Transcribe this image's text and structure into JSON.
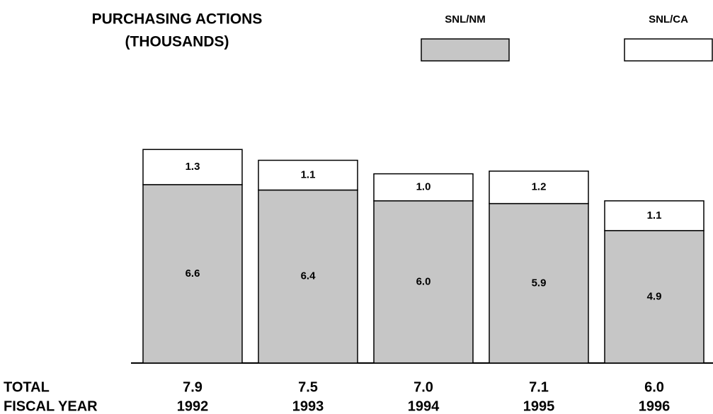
{
  "chart_data": {
    "type": "stacked_bar",
    "title": "PURCHASING ACTIONS",
    "subtitle": "(THOUSANDS)",
    "x_label": "FISCAL YEAR",
    "categories": [
      "1992",
      "1993",
      "1994",
      "1995",
      "1996"
    ],
    "series": [
      {
        "name": "SNL/NM",
        "color": "#c6c6c6",
        "values": [
          6.6,
          6.4,
          6.0,
          5.9,
          4.9
        ],
        "value_labels": [
          "6.6",
          "6.4",
          "6.0",
          "5.9",
          "4.9"
        ]
      },
      {
        "name": "SNL/CA",
        "color": "#ffffff",
        "values": [
          1.3,
          1.1,
          1.0,
          1.2,
          1.1
        ],
        "value_labels": [
          "1.3",
          "1.1",
          "1.0",
          "1.2",
          "1.1"
        ]
      }
    ],
    "totals": {
      "label": "TOTAL",
      "values": [
        7.9,
        7.5,
        7.0,
        7.1,
        6.0
      ],
      "value_labels": [
        "7.9",
        "7.5",
        "7.0",
        "7.1",
        "6.0"
      ]
    }
  }
}
